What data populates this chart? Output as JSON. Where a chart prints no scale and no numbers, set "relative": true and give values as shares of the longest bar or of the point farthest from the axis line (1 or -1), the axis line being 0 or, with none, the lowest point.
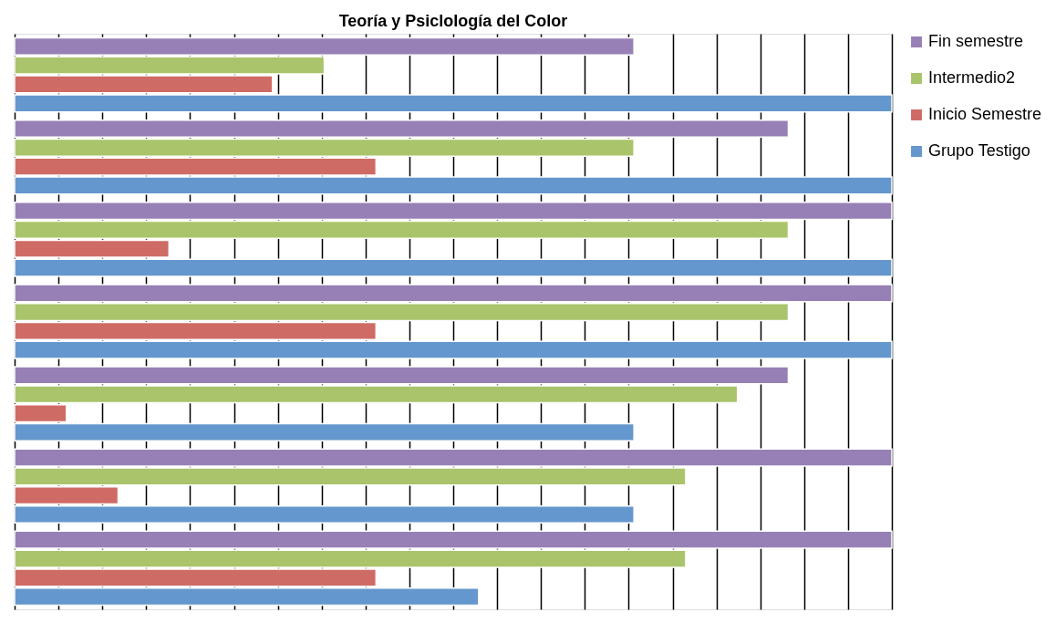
{
  "chart_data": {
    "type": "bar",
    "orientation": "horizontal",
    "relative": true,
    "title": "Teoría y Psiclología del Color",
    "categories": [
      null,
      null,
      null,
      null,
      null,
      null,
      null
    ],
    "series": [
      {
        "name": "Fin semestre",
        "color": "#9780b5",
        "values": [
          0.706,
          0.882,
          1,
          1,
          0.882,
          1,
          1
        ]
      },
      {
        "name": "Intermedio2",
        "color": "#a9c46a",
        "values": [
          0.353,
          0.706,
          0.882,
          0.882,
          0.824,
          0.765,
          0.765
        ]
      },
      {
        "name": "Inicio Semestre",
        "color": "#cf6b65",
        "values": [
          0.294,
          0.412,
          0.176,
          0.412,
          0.059,
          0.118,
          0.412
        ]
      },
      {
        "name": "Grupo Testigo",
        "color": "#6497cd",
        "values": [
          1,
          1,
          1,
          1,
          0.706,
          0.706,
          0.529
        ]
      }
    ],
    "grid": "x",
    "legend": "right",
    "tick_labels": false
  }
}
